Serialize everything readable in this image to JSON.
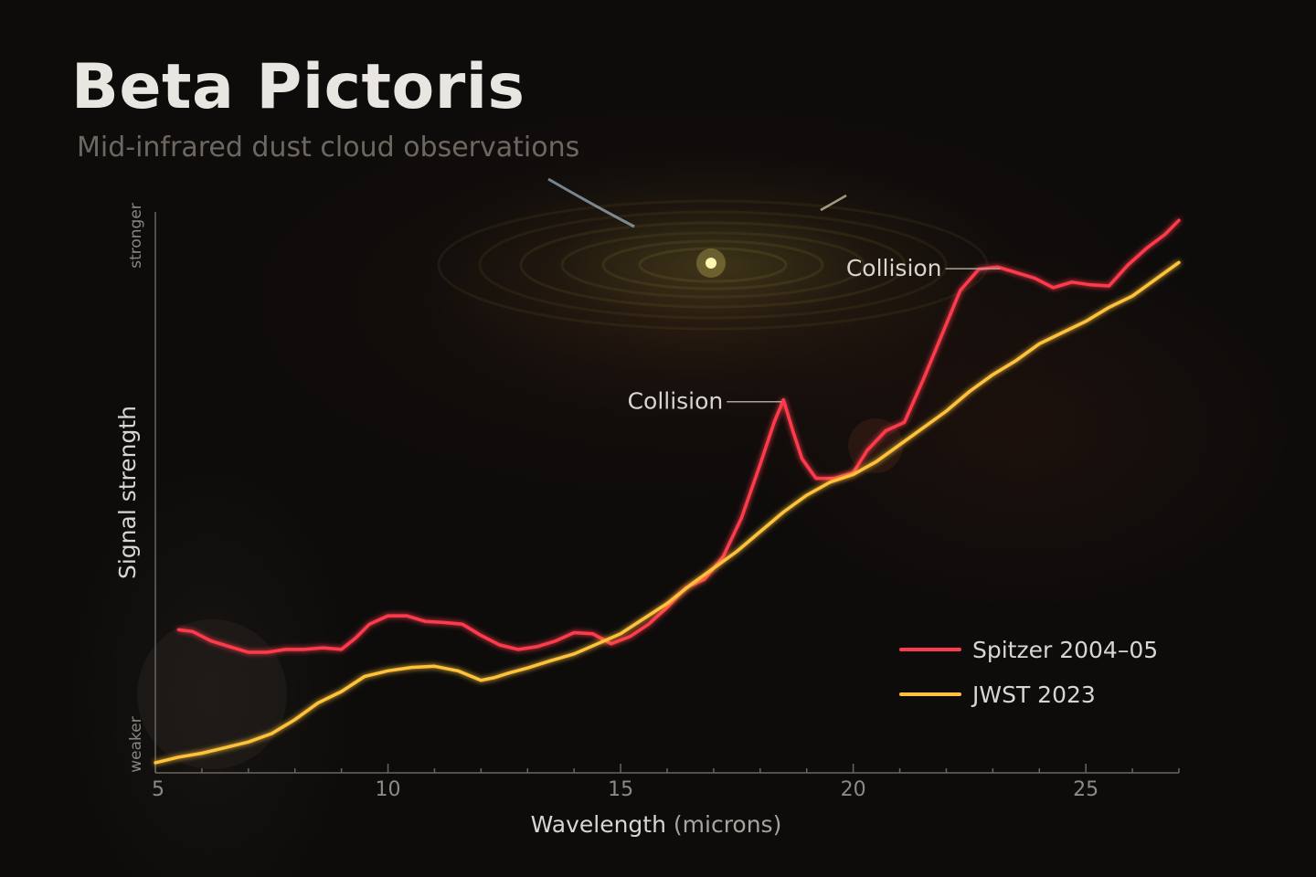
{
  "title": "Beta Pictoris",
  "subtitle": "Mid-infrared dust cloud observations",
  "colors": {
    "spitzer": "#ff3a4c",
    "jwst": "#ffc23a",
    "axis": "#6a6460",
    "text": "#d9d5d0",
    "muted": "#8a847e"
  },
  "chart_data": {
    "type": "line",
    "xlabel": "Wavelength",
    "xlabel_unit": "(microns)",
    "ylabel": "Signal strength",
    "y_high_label": "stronger",
    "y_low_label": "weaker",
    "xlim": [
      5,
      27
    ],
    "ylim": [
      0,
      100
    ],
    "xticks": [
      5,
      10,
      15,
      20,
      25
    ],
    "legend_position": "bottom-right",
    "series": [
      {
        "name": "Spitzer 2004–05",
        "color": "#ff3a4c",
        "x": [
          5.5,
          5.8,
          6.2,
          6.6,
          7.0,
          7.4,
          7.8,
          8.2,
          8.6,
          9.0,
          9.3,
          9.6,
          10.0,
          10.4,
          10.8,
          11.2,
          11.6,
          12.0,
          12.4,
          12.8,
          13.2,
          13.6,
          14.0,
          14.4,
          14.8,
          15.2,
          15.6,
          16.0,
          16.4,
          16.8,
          17.2,
          17.6,
          18.0,
          18.3,
          18.5,
          18.7,
          18.9,
          19.2,
          19.6,
          20.0,
          20.3,
          20.7,
          21.1,
          21.5,
          21.9,
          22.3,
          22.7,
          23.1,
          23.5,
          23.9,
          24.3,
          24.7,
          25.1,
          25.5,
          25.9,
          26.3,
          26.7,
          27.0
        ],
        "values": [
          25.5,
          25.2,
          23.5,
          22.5,
          21.5,
          21.5,
          22.0,
          22.0,
          22.3,
          22.0,
          24.0,
          26.5,
          28.0,
          28.0,
          27.0,
          26.8,
          26.5,
          24.5,
          22.8,
          22.0,
          22.5,
          23.5,
          25.0,
          24.8,
          23.0,
          24.3,
          26.5,
          29.5,
          33.0,
          34.5,
          38.5,
          45.5,
          55.0,
          62.5,
          66.5,
          61.0,
          56.0,
          52.5,
          52.5,
          53.5,
          57.5,
          61.0,
          62.5,
          70.0,
          78.0,
          86.0,
          89.8,
          90.2,
          89.2,
          88.2,
          86.5,
          87.5,
          87.0,
          86.8,
          90.5,
          93.5,
          96.0,
          98.5
        ]
      },
      {
        "name": "JWST 2023",
        "color": "#ffc23a",
        "x": [
          5.0,
          5.5,
          6.0,
          6.5,
          7.0,
          7.5,
          8.0,
          8.5,
          9.0,
          9.5,
          10.0,
          10.5,
          11.0,
          11.5,
          12.0,
          12.3,
          12.6,
          13.0,
          13.5,
          14.0,
          14.5,
          15.0,
          15.5,
          16.0,
          16.5,
          17.0,
          17.5,
          18.0,
          18.5,
          19.0,
          19.5,
          20.0,
          20.5,
          21.0,
          21.5,
          22.0,
          22.5,
          23.0,
          23.5,
          24.0,
          24.5,
          25.0,
          25.5,
          26.0,
          26.5,
          27.0
        ],
        "values": [
          1.8,
          2.8,
          3.5,
          4.5,
          5.5,
          7.0,
          9.5,
          12.5,
          14.5,
          17.2,
          18.2,
          18.8,
          19.0,
          18.2,
          16.5,
          17.0,
          17.8,
          18.7,
          20.0,
          21.2,
          23.0,
          24.8,
          27.5,
          30.2,
          33.5,
          36.5,
          39.5,
          43.0,
          46.5,
          49.5,
          51.8,
          53.2,
          55.5,
          58.5,
          61.5,
          64.5,
          68.0,
          71.0,
          73.5,
          76.5,
          78.5,
          80.5,
          83.0,
          85.0,
          88.0,
          91.0
        ]
      }
    ],
    "annotations": [
      {
        "text": "Collision",
        "x": 18.5,
        "y": 66.5
      },
      {
        "text": "Collision",
        "x": 23.2,
        "y": 90.2
      }
    ]
  }
}
